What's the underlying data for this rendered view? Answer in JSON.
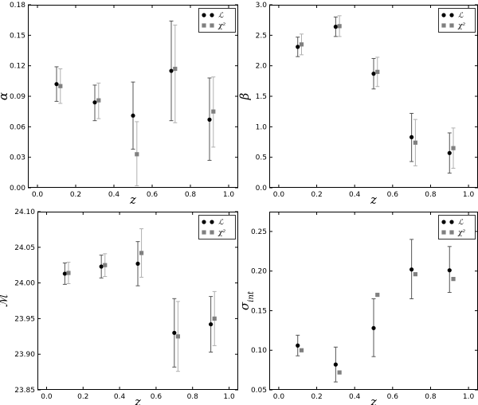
{
  "chart_data": [
    {
      "type": "scatter",
      "xlabel": "z",
      "ylabel": "α",
      "xlim": [
        -0.05,
        1.05
      ],
      "ylim": [
        0.0,
        0.18
      ],
      "xticks": [
        "0.0",
        "0.2",
        "0.4",
        "0.6",
        "0.8",
        "1.0"
      ],
      "yticks": [
        "0.00",
        "0.03",
        "0.06",
        "0.09",
        "0.12",
        "0.15",
        "0.18"
      ],
      "legend": "top-right",
      "series": [
        {
          "name": "ℒ",
          "marker": "circle",
          "color": "#000000",
          "x": [
            0.1,
            0.3,
            0.5,
            0.7,
            0.9
          ],
          "y": [
            0.102,
            0.084,
            0.071,
            0.115,
            0.067
          ],
          "err_low": [
            0.017,
            0.018,
            0.033,
            0.049,
            0.04
          ],
          "err_high": [
            0.017,
            0.017,
            0.033,
            0.049,
            0.041
          ]
        },
        {
          "name": "χ²",
          "marker": "square",
          "color": "#808080",
          "x": [
            0.12,
            0.32,
            0.52,
            0.72,
            0.92
          ],
          "y": [
            0.1,
            0.086,
            0.033,
            0.117,
            0.075
          ],
          "err_low": [
            0.017,
            0.018,
            0.031,
            0.053,
            0.035
          ],
          "err_high": [
            0.017,
            0.017,
            0.032,
            0.043,
            0.034
          ]
        }
      ]
    },
    {
      "type": "scatter",
      "xlabel": "z",
      "ylabel": "β",
      "xlim": [
        -0.05,
        1.05
      ],
      "ylim": [
        0.0,
        3.0
      ],
      "xticks": [
        "0.0",
        "0.2",
        "0.4",
        "0.6",
        "0.8",
        "1.0"
      ],
      "yticks": [
        "0.0",
        "0.5",
        "1.0",
        "1.5",
        "2.0",
        "2.5",
        "3.0"
      ],
      "legend": "top-right",
      "series": [
        {
          "name": "ℒ",
          "marker": "circle",
          "color": "#000000",
          "x": [
            0.1,
            0.3,
            0.5,
            0.7,
            0.9
          ],
          "y": [
            2.31,
            2.64,
            1.87,
            0.83,
            0.57
          ],
          "err_low": [
            0.16,
            0.16,
            0.25,
            0.4,
            0.33
          ],
          "err_high": [
            0.16,
            0.16,
            0.25,
            0.39,
            0.33
          ]
        },
        {
          "name": "χ²",
          "marker": "square",
          "color": "#808080",
          "x": [
            0.12,
            0.32,
            0.52,
            0.72,
            0.92
          ],
          "y": [
            2.35,
            2.65,
            1.9,
            0.74,
            0.65
          ],
          "err_low": [
            0.17,
            0.17,
            0.24,
            0.38,
            0.33
          ],
          "err_high": [
            0.17,
            0.17,
            0.24,
            0.38,
            0.33
          ]
        }
      ]
    },
    {
      "type": "scatter",
      "xlabel": "z",
      "ylabel": "ℳ",
      "xlim": [
        -0.05,
        1.05
      ],
      "ylim": [
        23.85,
        24.1
      ],
      "xticks": [
        "0.0",
        "0.2",
        "0.4",
        "0.6",
        "0.8",
        "1.0"
      ],
      "yticks": [
        "23.85",
        "23.90",
        "23.95",
        "24.00",
        "24.05",
        "24.10"
      ],
      "legend": "top-right",
      "series": [
        {
          "name": "ℒ",
          "marker": "circle",
          "color": "#000000",
          "x": [
            0.1,
            0.3,
            0.5,
            0.7,
            0.9
          ],
          "y": [
            24.013,
            24.023,
            24.027,
            23.93,
            23.942
          ],
          "err_low": [
            0.015,
            0.016,
            0.031,
            0.048,
            0.039
          ],
          "err_high": [
            0.015,
            0.016,
            0.031,
            0.048,
            0.039
          ]
        },
        {
          "name": "χ²",
          "marker": "square",
          "color": "#808080",
          "x": [
            0.12,
            0.32,
            0.52,
            0.72,
            0.92
          ],
          "y": [
            24.014,
            24.025,
            24.042,
            23.925,
            23.95
          ],
          "err_low": [
            0.015,
            0.016,
            0.034,
            0.049,
            0.038
          ],
          "err_high": [
            0.015,
            0.016,
            0.034,
            0.049,
            0.038
          ]
        }
      ]
    },
    {
      "type": "scatter",
      "xlabel": "z",
      "ylabel": "σ_int",
      "xlim": [
        -0.05,
        1.05
      ],
      "ylim": [
        0.05,
        0.275
      ],
      "xticks": [
        "0.0",
        "0.2",
        "0.4",
        "0.6",
        "0.8",
        "1.0"
      ],
      "yticks": [
        "0.05",
        "0.10",
        "0.15",
        "0.20",
        "0.25"
      ],
      "legend": "top-right",
      "series": [
        {
          "name": "ℒ",
          "marker": "circle",
          "color": "#000000",
          "x": [
            0.1,
            0.3,
            0.5,
            0.7,
            0.9
          ],
          "y": [
            0.106,
            0.082,
            0.128,
            0.202,
            0.201
          ],
          "err_low": [
            0.013,
            0.022,
            0.036,
            0.037,
            0.028
          ],
          "err_high": [
            0.013,
            0.022,
            0.037,
            0.038,
            0.03
          ]
        },
        {
          "name": "χ²",
          "marker": "square",
          "color": "#808080",
          "x": [
            0.12,
            0.32,
            0.52,
            0.72,
            0.92
          ],
          "y": [
            0.1,
            0.072,
            0.17,
            0.196,
            0.19
          ],
          "err_low": [
            0.0,
            0.0,
            0.0,
            0.0,
            0.0
          ],
          "err_high": [
            0.0,
            0.0,
            0.0,
            0.0,
            0.0
          ]
        }
      ]
    }
  ]
}
